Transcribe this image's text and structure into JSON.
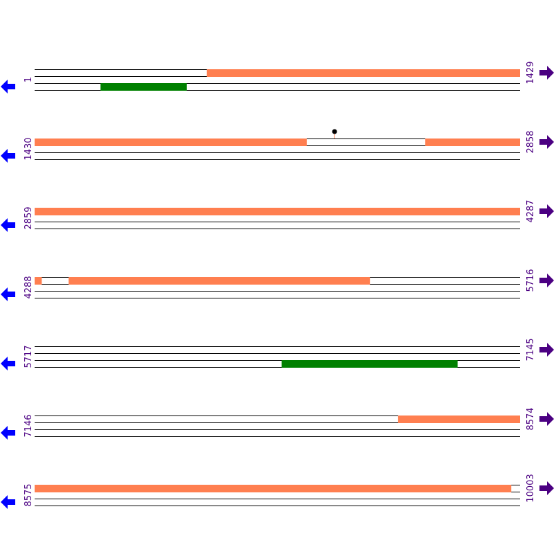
{
  "colors": {
    "forward_feature": "#ff7f50",
    "reverse_feature": "#008000",
    "start_arrow": "#0000ff",
    "end_arrow": "#4b0082",
    "coordinate_text": "#4b0082",
    "track_line": "#000000",
    "marker": "#000000"
  },
  "icons": {
    "start_arrow": "left-arrow-icon",
    "end_arrow": "right-arrow-icon",
    "marker": "pin-marker-icon"
  },
  "sequence": {
    "start": 1,
    "end": 10003,
    "row_length": 1429
  },
  "rows": [
    {
      "start_label": "1",
      "end_label": "1429"
    },
    {
      "start_label": "1430",
      "end_label": "2858"
    },
    {
      "start_label": "2859",
      "end_label": "4287"
    },
    {
      "start_label": "4288",
      "end_label": "5716"
    },
    {
      "start_label": "5717",
      "end_label": "7145"
    },
    {
      "start_label": "7146",
      "end_label": "8574"
    },
    {
      "start_label": "8575",
      "end_label": "10003"
    }
  ],
  "features": [
    {
      "strand": "forward",
      "start": 508,
      "end": 1429
    },
    {
      "strand": "reverse",
      "start": 195,
      "end": 448
    },
    {
      "strand": "forward",
      "start": 1430,
      "end": 2230
    },
    {
      "strand": "forward",
      "start": 2580,
      "end": 2858
    },
    {
      "strand": "forward",
      "start": 2859,
      "end": 4287
    },
    {
      "strand": "forward",
      "start": 4288,
      "end": 4308
    },
    {
      "strand": "forward",
      "start": 4388,
      "end": 5274
    },
    {
      "strand": "reverse",
      "start": 6444,
      "end": 6961
    },
    {
      "strand": "forward",
      "start": 8216,
      "end": 8574
    },
    {
      "strand": "forward",
      "start": 8575,
      "end": 9977
    }
  ],
  "markers": [
    {
      "position": 2313
    }
  ]
}
